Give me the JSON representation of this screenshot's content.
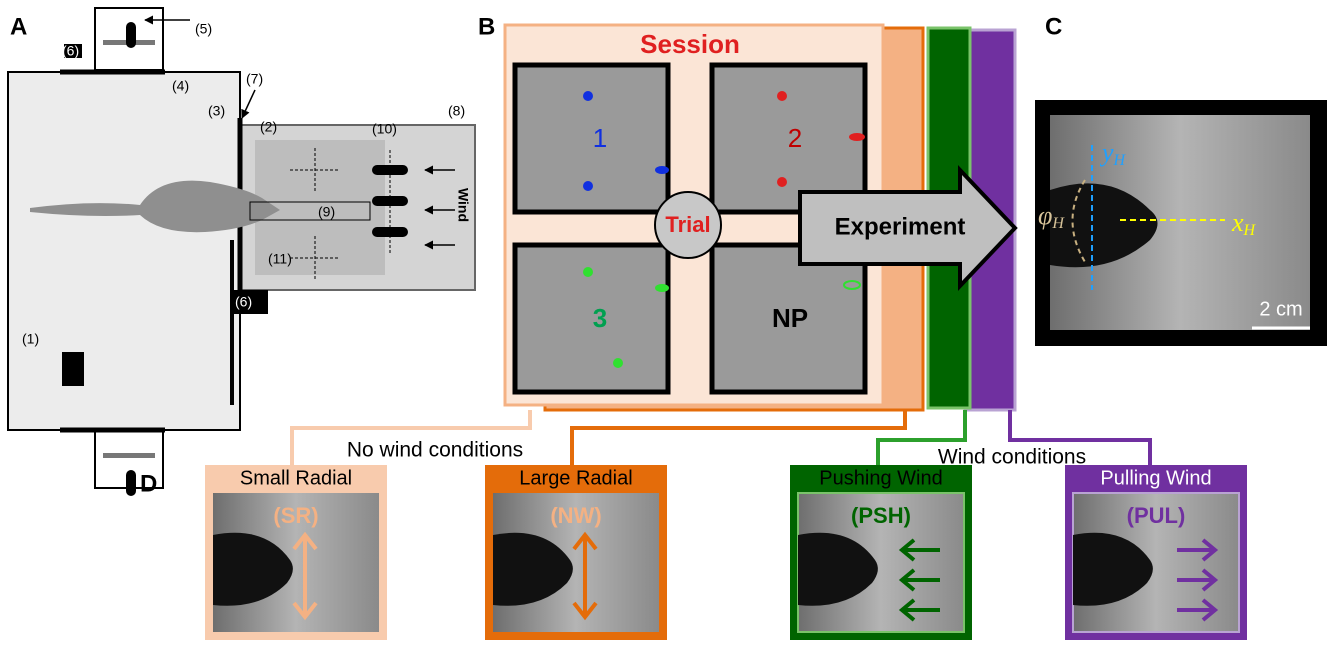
{
  "panels": {
    "a": {
      "letter": "A",
      "labels": [
        "(1)",
        "(2)",
        "(3)",
        "(4)",
        "(5)",
        "(6)",
        "(6)",
        "(7)",
        "(8)",
        "(9)",
        "(10)",
        "(11)"
      ],
      "wind": "Wind"
    },
    "b": {
      "letter": "B",
      "session": "Session",
      "trials": [
        "1",
        "2",
        "3",
        "NP"
      ],
      "trial": "Trial",
      "experiment": "Experiment"
    },
    "c": {
      "letter": "C",
      "y_axis": {
        "symbol": "y",
        "subscript": "H"
      },
      "x_axis": {
        "symbol": "x",
        "subscript": "H"
      },
      "angle": {
        "symbol": "φ",
        "subscript": "H"
      },
      "scale": "2 cm"
    },
    "d": {
      "letter": "D",
      "no_wind": "No wind conditions",
      "wind": "Wind conditions",
      "conditions": [
        {
          "name": "Small Radial",
          "code": "(SR)"
        },
        {
          "name": "Large Radial",
          "code": "(NW)"
        },
        {
          "name": "Pushing Wind",
          "code": "(PSH)"
        },
        {
          "name": "Pulling Wind",
          "code": "(PUL)"
        }
      ]
    }
  }
}
